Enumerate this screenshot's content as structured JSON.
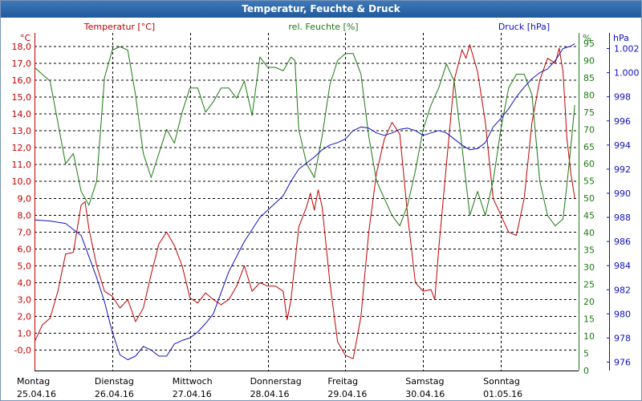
{
  "window": {
    "title": "Temperatur, Feuchte & Druck"
  },
  "colors": {
    "temperature": "#c00000",
    "humidity": "#1a7a10",
    "pressure": "#1010c0",
    "grid": "#000000"
  },
  "chart_data": {
    "type": "line",
    "grid": true,
    "axes": {
      "temperature": {
        "title": "Temperatur [°C]",
        "unit": "°C",
        "range": [
          -1.2,
          18.8
        ],
        "ticks": [
          "-0,0",
          "1,0",
          "2,0",
          "3,0",
          "4,0",
          "5,0",
          "6,0",
          "7,0",
          "8,0",
          "9,0",
          "10,0",
          "11,0",
          "12,0",
          "13,0",
          "14,0",
          "15,0",
          "16,0",
          "17,0",
          "18,0"
        ],
        "tick_values": [
          0,
          1,
          2,
          3,
          4,
          5,
          6,
          7,
          8,
          9,
          10,
          11,
          12,
          13,
          14,
          15,
          16,
          17,
          18
        ]
      },
      "humidity": {
        "title": "rel. Feuchte [%]",
        "unit": "%",
        "range": [
          0,
          98
        ],
        "ticks": [
          "0",
          "5",
          "10",
          "15",
          "20",
          "25",
          "30",
          "35",
          "40",
          "45",
          "50",
          "55",
          "60",
          "65",
          "70",
          "75",
          "80",
          "85",
          "90",
          "95"
        ],
        "tick_values": [
          0,
          5,
          10,
          15,
          20,
          25,
          30,
          35,
          40,
          45,
          50,
          55,
          60,
          65,
          70,
          75,
          80,
          85,
          90,
          95
        ]
      },
      "pressure": {
        "title": "Druck [hPa]",
        "unit": "hPa",
        "range": [
          975.3,
          1003.3
        ],
        "ticks": [
          "976",
          "978",
          "980",
          "982",
          "984",
          "986",
          "988",
          "990",
          "992",
          "994",
          "996",
          "998",
          "1.000",
          "1.002"
        ],
        "tick_values": [
          976,
          978,
          980,
          982,
          984,
          986,
          988,
          990,
          992,
          994,
          996,
          998,
          1000,
          1002
        ]
      }
    },
    "x_labels": [
      {
        "day": "Montag",
        "date": "25.04.16"
      },
      {
        "day": "Dienstag",
        "date": "26.04.16"
      },
      {
        "day": "Mittwoch",
        "date": "27.04.16"
      },
      {
        "day": "Donnerstag",
        "date": "28.04.16"
      },
      {
        "day": "Freitag",
        "date": "29.04.16"
      },
      {
        "day": "Samstag",
        "date": "30.04.16"
      },
      {
        "day": "Sonntag",
        "date": "01.05.16"
      }
    ],
    "x_range_days": [
      0,
      7
    ],
    "series": [
      {
        "name": "Temperatur [°C]",
        "axis": "temperature",
        "points": [
          [
            0,
            0.5
          ],
          [
            0.1,
            1.5
          ],
          [
            0.2,
            1.9
          ],
          [
            0.3,
            3.5
          ],
          [
            0.4,
            5.7
          ],
          [
            0.5,
            5.8
          ],
          [
            0.6,
            8.6
          ],
          [
            0.65,
            8.8
          ],
          [
            0.7,
            7.2
          ],
          [
            0.8,
            5.0
          ],
          [
            0.9,
            3.5
          ],
          [
            1.0,
            3.2
          ],
          [
            1.1,
            2.5
          ],
          [
            1.2,
            3.0
          ],
          [
            1.3,
            1.7
          ],
          [
            1.4,
            2.5
          ],
          [
            1.5,
            4.5
          ],
          [
            1.6,
            6.3
          ],
          [
            1.7,
            7.0
          ],
          [
            1.8,
            6.2
          ],
          [
            1.9,
            5.0
          ],
          [
            2.0,
            3.1
          ],
          [
            2.1,
            2.8
          ],
          [
            2.2,
            3.4
          ],
          [
            2.3,
            3.0
          ],
          [
            2.4,
            2.7
          ],
          [
            2.5,
            3.0
          ],
          [
            2.6,
            3.8
          ],
          [
            2.7,
            5.0
          ],
          [
            2.8,
            3.5
          ],
          [
            2.9,
            4.0
          ],
          [
            3.0,
            3.8
          ],
          [
            3.1,
            3.8
          ],
          [
            3.2,
            3.5
          ],
          [
            3.25,
            1.8
          ],
          [
            3.3,
            3.0
          ],
          [
            3.4,
            7.3
          ],
          [
            3.5,
            8.5
          ],
          [
            3.55,
            9.3
          ],
          [
            3.6,
            8.3
          ],
          [
            3.65,
            9.5
          ],
          [
            3.7,
            8.5
          ],
          [
            3.8,
            4.0
          ],
          [
            3.9,
            0.5
          ],
          [
            4.0,
            -0.3
          ],
          [
            4.1,
            -0.5
          ],
          [
            4.2,
            2.0
          ],
          [
            4.3,
            7.0
          ],
          [
            4.4,
            10.5
          ],
          [
            4.5,
            12.5
          ],
          [
            4.6,
            13.5
          ],
          [
            4.7,
            12.8
          ],
          [
            4.8,
            8.0
          ],
          [
            4.9,
            4.0
          ],
          [
            5.0,
            3.5
          ],
          [
            5.1,
            3.6
          ],
          [
            5.15,
            3.0
          ],
          [
            5.2,
            6.0
          ],
          [
            5.3,
            11.0
          ],
          [
            5.4,
            16.0
          ],
          [
            5.5,
            17.8
          ],
          [
            5.55,
            17.3
          ],
          [
            5.6,
            18.1
          ],
          [
            5.7,
            16.5
          ],
          [
            5.8,
            13.5
          ],
          [
            5.9,
            9.0
          ],
          [
            6.0,
            8.0
          ],
          [
            6.1,
            7.0
          ],
          [
            6.2,
            6.8
          ],
          [
            6.3,
            9.0
          ],
          [
            6.4,
            13.5
          ],
          [
            6.5,
            16.0
          ],
          [
            6.6,
            17.3
          ],
          [
            6.7,
            17.0
          ],
          [
            6.75,
            17.9
          ],
          [
            6.8,
            16.5
          ],
          [
            6.85,
            12.5
          ],
          [
            6.9,
            10.5
          ],
          [
            6.95,
            9.0
          ]
        ]
      },
      {
        "name": "rel. Feuchte [%]",
        "axis": "humidity",
        "points": [
          [
            0,
            88
          ],
          [
            0.1,
            86
          ],
          [
            0.2,
            84
          ],
          [
            0.3,
            72
          ],
          [
            0.4,
            60
          ],
          [
            0.5,
            63
          ],
          [
            0.6,
            52
          ],
          [
            0.7,
            48
          ],
          [
            0.8,
            55
          ],
          [
            0.9,
            85
          ],
          [
            1.0,
            93
          ],
          [
            1.1,
            94
          ],
          [
            1.2,
            93
          ],
          [
            1.3,
            80
          ],
          [
            1.4,
            63
          ],
          [
            1.5,
            56
          ],
          [
            1.6,
            63
          ],
          [
            1.7,
            70
          ],
          [
            1.8,
            66
          ],
          [
            1.9,
            75
          ],
          [
            2.0,
            82
          ],
          [
            2.1,
            82
          ],
          [
            2.2,
            75
          ],
          [
            2.3,
            78
          ],
          [
            2.4,
            82
          ],
          [
            2.5,
            82
          ],
          [
            2.6,
            79
          ],
          [
            2.7,
            84
          ],
          [
            2.8,
            74
          ],
          [
            2.9,
            91
          ],
          [
            3.0,
            88
          ],
          [
            3.1,
            88
          ],
          [
            3.2,
            87
          ],
          [
            3.3,
            91
          ],
          [
            3.35,
            90
          ],
          [
            3.4,
            70
          ],
          [
            3.5,
            60
          ],
          [
            3.6,
            56
          ],
          [
            3.7,
            68
          ],
          [
            3.8,
            83
          ],
          [
            3.9,
            90
          ],
          [
            4.0,
            92
          ],
          [
            4.1,
            92
          ],
          [
            4.2,
            86
          ],
          [
            4.3,
            68
          ],
          [
            4.4,
            55
          ],
          [
            4.5,
            50
          ],
          [
            4.6,
            45
          ],
          [
            4.7,
            42
          ],
          [
            4.8,
            48
          ],
          [
            4.9,
            58
          ],
          [
            5.0,
            70
          ],
          [
            5.1,
            77
          ],
          [
            5.2,
            82
          ],
          [
            5.3,
            89
          ],
          [
            5.4,
            84
          ],
          [
            5.5,
            65
          ],
          [
            5.6,
            45
          ],
          [
            5.7,
            52
          ],
          [
            5.8,
            45
          ],
          [
            5.9,
            55
          ],
          [
            6.0,
            70
          ],
          [
            6.1,
            82
          ],
          [
            6.2,
            86
          ],
          [
            6.3,
            86
          ],
          [
            6.4,
            80
          ],
          [
            6.5,
            55
          ],
          [
            6.6,
            45
          ],
          [
            6.7,
            42
          ],
          [
            6.8,
            44
          ],
          [
            6.85,
            54
          ],
          [
            6.9,
            65
          ],
          [
            6.95,
            77
          ]
        ]
      },
      {
        "name": "Druck [hPa]",
        "axis": "pressure",
        "points": [
          [
            0,
            987.8
          ],
          [
            0.2,
            987.7
          ],
          [
            0.4,
            987.5
          ],
          [
            0.6,
            986.5
          ],
          [
            0.8,
            983.0
          ],
          [
            0.9,
            981.0
          ],
          [
            1.0,
            978.5
          ],
          [
            1.1,
            976.6
          ],
          [
            1.2,
            976.2
          ],
          [
            1.3,
            976.5
          ],
          [
            1.4,
            977.3
          ],
          [
            1.5,
            977.0
          ],
          [
            1.6,
            976.5
          ],
          [
            1.7,
            976.5
          ],
          [
            1.8,
            977.5
          ],
          [
            1.9,
            977.8
          ],
          [
            2.0,
            978.0
          ],
          [
            2.1,
            978.5
          ],
          [
            2.2,
            979.2
          ],
          [
            2.3,
            980.0
          ],
          [
            2.5,
            983.5
          ],
          [
            2.7,
            986.0
          ],
          [
            2.9,
            988.0
          ],
          [
            3.1,
            989.2
          ],
          [
            3.2,
            989.8
          ],
          [
            3.3,
            991.0
          ],
          [
            3.4,
            992.0
          ],
          [
            3.5,
            992.5
          ],
          [
            3.6,
            993.0
          ],
          [
            3.7,
            993.6
          ],
          [
            3.8,
            994.0
          ],
          [
            3.9,
            994.2
          ],
          [
            4.0,
            994.5
          ],
          [
            4.1,
            995.2
          ],
          [
            4.2,
            995.5
          ],
          [
            4.3,
            995.4
          ],
          [
            4.4,
            995.0
          ],
          [
            4.5,
            994.8
          ],
          [
            4.6,
            995.0
          ],
          [
            4.7,
            995.3
          ],
          [
            4.8,
            995.4
          ],
          [
            4.9,
            995.2
          ],
          [
            5.0,
            994.8
          ],
          [
            5.1,
            995.0
          ],
          [
            5.2,
            995.2
          ],
          [
            5.3,
            995.0
          ],
          [
            5.4,
            994.5
          ],
          [
            5.5,
            994.0
          ],
          [
            5.6,
            993.6
          ],
          [
            5.7,
            993.7
          ],
          [
            5.8,
            994.2
          ],
          [
            5.9,
            995.5
          ],
          [
            6.0,
            996.2
          ],
          [
            6.1,
            997.0
          ],
          [
            6.2,
            998.0
          ],
          [
            6.3,
            998.8
          ],
          [
            6.4,
            999.5
          ],
          [
            6.5,
            1000.0
          ],
          [
            6.6,
            1000.3
          ],
          [
            6.7,
            1001.0
          ],
          [
            6.8,
            1002.0
          ],
          [
            6.9,
            1002.2
          ],
          [
            6.95,
            1002.4
          ]
        ]
      }
    ]
  }
}
